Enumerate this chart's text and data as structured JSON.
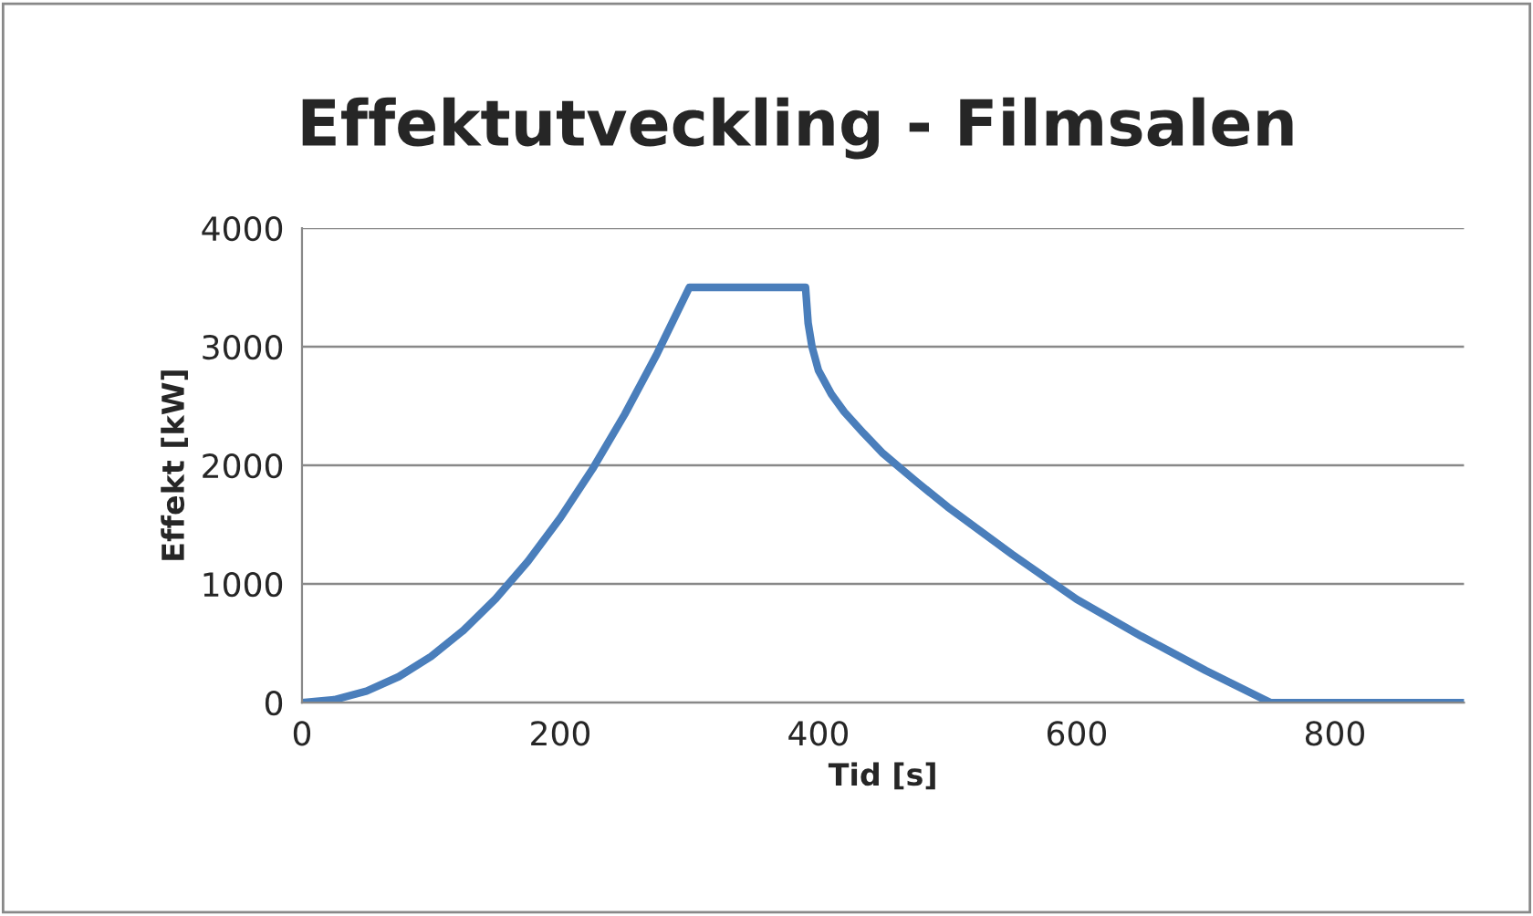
{
  "chart_data": {
    "type": "line",
    "title": "Effektutveckling - Filmsalen",
    "xlabel": "Tid [s]",
    "ylabel": "Effekt [kW]",
    "x": [
      0,
      25,
      50,
      75,
      100,
      125,
      150,
      175,
      200,
      225,
      250,
      275,
      300,
      390,
      392,
      395,
      400,
      410,
      420,
      435,
      450,
      475,
      500,
      550,
      600,
      650,
      700,
      750,
      900
    ],
    "series": [
      {
        "color": "#4a7ebb",
        "values": [
          0,
          24,
          97,
          219,
          389,
          608,
          875,
          1191,
          1556,
          1969,
          2431,
          2941,
          3500,
          3500,
          3200,
          3000,
          2800,
          2600,
          2450,
          2270,
          2100,
          1870,
          1650,
          1250,
          870,
          560,
          270,
          0,
          0
        ]
      }
    ],
    "xlim": [
      0,
      900
    ],
    "xticks": [
      0,
      200,
      400,
      600,
      800
    ],
    "ylim": [
      0,
      4000
    ],
    "yticks": [
      0,
      1000,
      2000,
      3000,
      4000
    ],
    "grid": "y",
    "legend": false,
    "marker": "none",
    "line_style": "solid"
  }
}
